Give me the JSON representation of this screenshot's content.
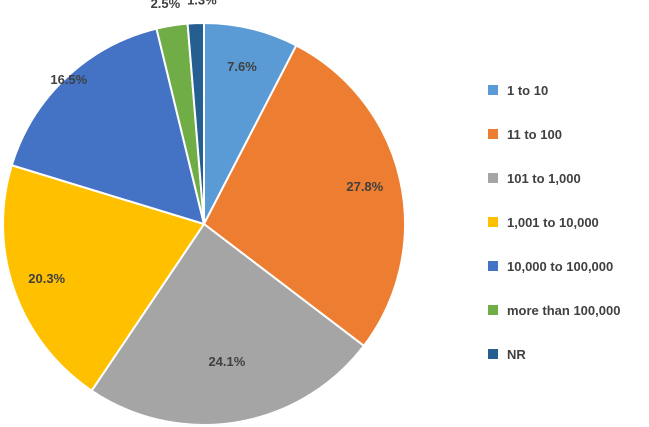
{
  "chart_data": {
    "type": "pie",
    "title": "",
    "legend_position": "right",
    "slices": [
      {
        "label": "1 to 10",
        "value": 7.6,
        "value_label": "7.6%",
        "color": "#5B9BD5"
      },
      {
        "label": "11 to 100",
        "value": 27.8,
        "value_label": "27.8%",
        "color": "#ED7D31"
      },
      {
        "label": "101 to 1,000",
        "value": 24.1,
        "value_label": "24.1%",
        "color": "#A5A5A5"
      },
      {
        "label": "1,001 to 10,000",
        "value": 20.3,
        "value_label": "20.3%",
        "color": "#FFC000"
      },
      {
        "label": "10,000 to 100,000",
        "value": 16.5,
        "value_label": "16.5%",
        "color": "#4472C4"
      },
      {
        "label": "more than 100,000",
        "value": 2.5,
        "value_label": "2.5%",
        "color": "#70AD47"
      },
      {
        "label": "NR",
        "value": 1.3,
        "value_label": "1.3%",
        "color": "#255E91"
      }
    ]
  }
}
